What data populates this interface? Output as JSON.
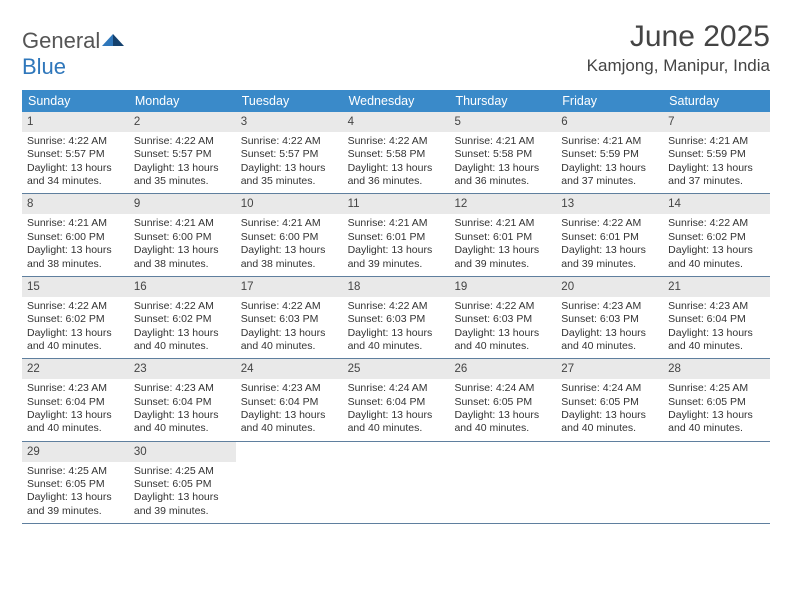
{
  "brand": {
    "word1": "General",
    "word2": "Blue"
  },
  "title": "June 2025",
  "location": "Kamjong, Manipur, India",
  "colors": {
    "header_bg": "#3a8ac9",
    "header_text": "#ffffff",
    "daynum_bg": "#e9e9e9",
    "rule": "#5f7f9e",
    "text": "#333333",
    "title_text": "#444444",
    "logo_gray": "#555555",
    "logo_blue": "#2f77bb",
    "page_bg": "#ffffff"
  },
  "fonts": {
    "title_pt": 30,
    "location_pt": 17,
    "dayhead_pt": 12.5,
    "daynum_pt": 11.5,
    "body_pt": 10.5
  },
  "day_names": [
    "Sunday",
    "Monday",
    "Tuesday",
    "Wednesday",
    "Thursday",
    "Friday",
    "Saturday"
  ],
  "days": [
    {
      "n": 1,
      "sunrise": "4:22 AM",
      "sunset": "5:57 PM",
      "dl": "13 hours and 34 minutes."
    },
    {
      "n": 2,
      "sunrise": "4:22 AM",
      "sunset": "5:57 PM",
      "dl": "13 hours and 35 minutes."
    },
    {
      "n": 3,
      "sunrise": "4:22 AM",
      "sunset": "5:57 PM",
      "dl": "13 hours and 35 minutes."
    },
    {
      "n": 4,
      "sunrise": "4:22 AM",
      "sunset": "5:58 PM",
      "dl": "13 hours and 36 minutes."
    },
    {
      "n": 5,
      "sunrise": "4:21 AM",
      "sunset": "5:58 PM",
      "dl": "13 hours and 36 minutes."
    },
    {
      "n": 6,
      "sunrise": "4:21 AM",
      "sunset": "5:59 PM",
      "dl": "13 hours and 37 minutes."
    },
    {
      "n": 7,
      "sunrise": "4:21 AM",
      "sunset": "5:59 PM",
      "dl": "13 hours and 37 minutes."
    },
    {
      "n": 8,
      "sunrise": "4:21 AM",
      "sunset": "6:00 PM",
      "dl": "13 hours and 38 minutes."
    },
    {
      "n": 9,
      "sunrise": "4:21 AM",
      "sunset": "6:00 PM",
      "dl": "13 hours and 38 minutes."
    },
    {
      "n": 10,
      "sunrise": "4:21 AM",
      "sunset": "6:00 PM",
      "dl": "13 hours and 38 minutes."
    },
    {
      "n": 11,
      "sunrise": "4:21 AM",
      "sunset": "6:01 PM",
      "dl": "13 hours and 39 minutes."
    },
    {
      "n": 12,
      "sunrise": "4:21 AM",
      "sunset": "6:01 PM",
      "dl": "13 hours and 39 minutes."
    },
    {
      "n": 13,
      "sunrise": "4:22 AM",
      "sunset": "6:01 PM",
      "dl": "13 hours and 39 minutes."
    },
    {
      "n": 14,
      "sunrise": "4:22 AM",
      "sunset": "6:02 PM",
      "dl": "13 hours and 40 minutes."
    },
    {
      "n": 15,
      "sunrise": "4:22 AM",
      "sunset": "6:02 PM",
      "dl": "13 hours and 40 minutes."
    },
    {
      "n": 16,
      "sunrise": "4:22 AM",
      "sunset": "6:02 PM",
      "dl": "13 hours and 40 minutes."
    },
    {
      "n": 17,
      "sunrise": "4:22 AM",
      "sunset": "6:03 PM",
      "dl": "13 hours and 40 minutes."
    },
    {
      "n": 18,
      "sunrise": "4:22 AM",
      "sunset": "6:03 PM",
      "dl": "13 hours and 40 minutes."
    },
    {
      "n": 19,
      "sunrise": "4:22 AM",
      "sunset": "6:03 PM",
      "dl": "13 hours and 40 minutes."
    },
    {
      "n": 20,
      "sunrise": "4:23 AM",
      "sunset": "6:03 PM",
      "dl": "13 hours and 40 minutes."
    },
    {
      "n": 21,
      "sunrise": "4:23 AM",
      "sunset": "6:04 PM",
      "dl": "13 hours and 40 minutes."
    },
    {
      "n": 22,
      "sunrise": "4:23 AM",
      "sunset": "6:04 PM",
      "dl": "13 hours and 40 minutes."
    },
    {
      "n": 23,
      "sunrise": "4:23 AM",
      "sunset": "6:04 PM",
      "dl": "13 hours and 40 minutes."
    },
    {
      "n": 24,
      "sunrise": "4:23 AM",
      "sunset": "6:04 PM",
      "dl": "13 hours and 40 minutes."
    },
    {
      "n": 25,
      "sunrise": "4:24 AM",
      "sunset": "6:04 PM",
      "dl": "13 hours and 40 minutes."
    },
    {
      "n": 26,
      "sunrise": "4:24 AM",
      "sunset": "6:05 PM",
      "dl": "13 hours and 40 minutes."
    },
    {
      "n": 27,
      "sunrise": "4:24 AM",
      "sunset": "6:05 PM",
      "dl": "13 hours and 40 minutes."
    },
    {
      "n": 28,
      "sunrise": "4:25 AM",
      "sunset": "6:05 PM",
      "dl": "13 hours and 40 minutes."
    },
    {
      "n": 29,
      "sunrise": "4:25 AM",
      "sunset": "6:05 PM",
      "dl": "13 hours and 39 minutes."
    },
    {
      "n": 30,
      "sunrise": "4:25 AM",
      "sunset": "6:05 PM",
      "dl": "13 hours and 39 minutes."
    }
  ],
  "labels": {
    "sunrise": "Sunrise:",
    "sunset": "Sunset:",
    "daylight": "Daylight:"
  },
  "first_day_column": 0,
  "layout": {
    "columns": 7,
    "rows": 5
  }
}
